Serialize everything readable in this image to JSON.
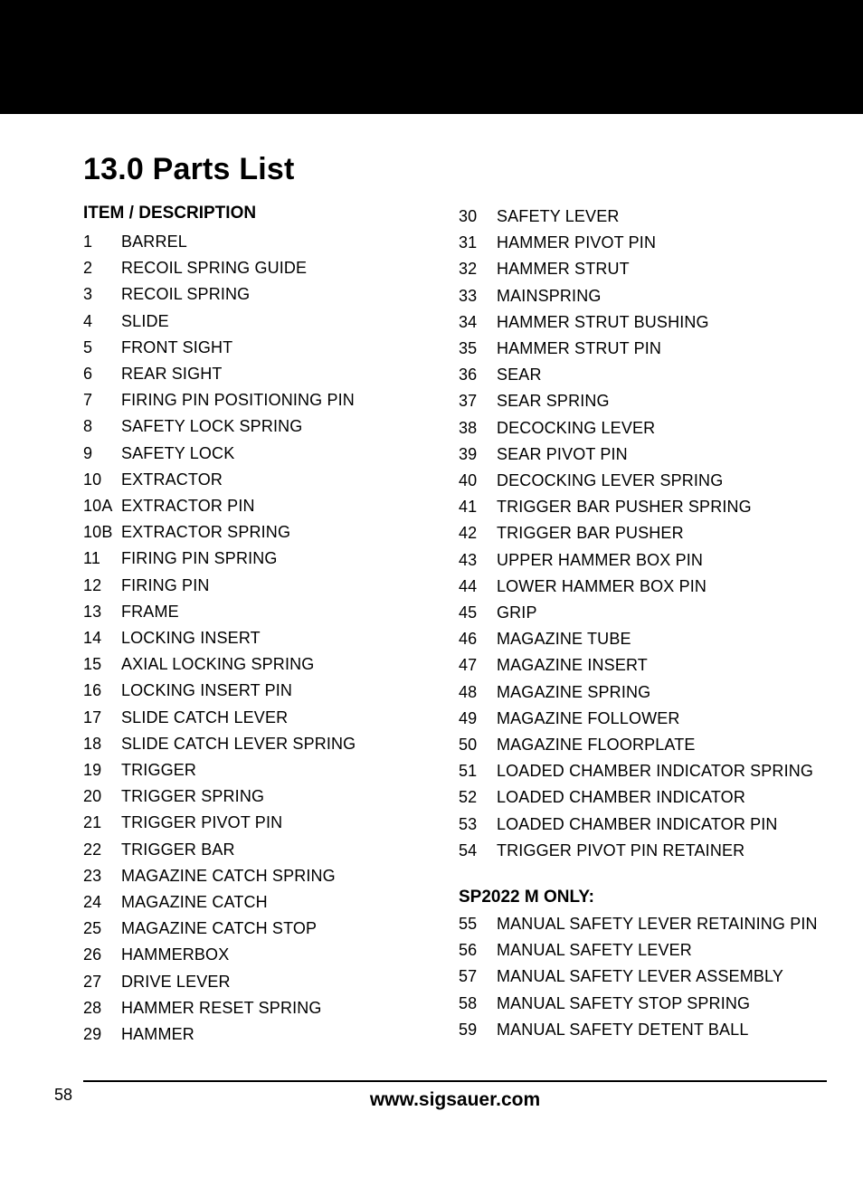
{
  "colors": {
    "banner_bg": "#000000",
    "page_bg": "#ffffff",
    "text": "#000000",
    "rule": "#000000"
  },
  "typography": {
    "title_fontsize_pt": 26,
    "body_fontsize_pt": 13,
    "footer_url_fontsize_pt": 16,
    "font_family": "Arial"
  },
  "title": "13.0 Parts List",
  "column_header": "ITEM / DESCRIPTION",
  "subgroup_header": "SP2022 M ONLY:",
  "left_items": [
    {
      "num": "1",
      "desc": "BARREL"
    },
    {
      "num": "2",
      "desc": "RECOIL SPRING GUIDE"
    },
    {
      "num": "3",
      "desc": "RECOIL SPRING"
    },
    {
      "num": "4",
      "desc": "SLIDE"
    },
    {
      "num": "5",
      "desc": "FRONT SIGHT"
    },
    {
      "num": "6",
      "desc": "REAR SIGHT"
    },
    {
      "num": "7",
      "desc": "FIRING PIN POSITIONING PIN"
    },
    {
      "num": "8",
      "desc": "SAFETY LOCK SPRING"
    },
    {
      "num": "9",
      "desc": "SAFETY LOCK"
    },
    {
      "num": "10",
      "desc": "EXTRACTOR"
    },
    {
      "num": "10A",
      "desc": "EXTRACTOR PIN"
    },
    {
      "num": "10B",
      "desc": "EXTRACTOR SPRING"
    },
    {
      "num": "11",
      "desc": "FIRING PIN SPRING"
    },
    {
      "num": "12",
      "desc": "FIRING PIN"
    },
    {
      "num": "13",
      "desc": "FRAME"
    },
    {
      "num": "14",
      "desc": "LOCKING INSERT"
    },
    {
      "num": "15",
      "desc": "AXIAL LOCKING SPRING"
    },
    {
      "num": "16",
      "desc": "LOCKING INSERT PIN"
    },
    {
      "num": "17",
      "desc": "SLIDE CATCH LEVER"
    },
    {
      "num": "18",
      "desc": "SLIDE CATCH LEVER SPRING"
    },
    {
      "num": "19",
      "desc": "TRIGGER"
    },
    {
      "num": "20",
      "desc": "TRIGGER SPRING"
    },
    {
      "num": "21",
      "desc": "TRIGGER PIVOT PIN"
    },
    {
      "num": "22",
      "desc": "TRIGGER BAR"
    },
    {
      "num": "23",
      "desc": "MAGAZINE CATCH SPRING"
    },
    {
      "num": "24",
      "desc": "MAGAZINE CATCH"
    },
    {
      "num": "25",
      "desc": "MAGAZINE CATCH STOP"
    },
    {
      "num": "26",
      "desc": "HAMMERBOX"
    },
    {
      "num": "27",
      "desc": "DRIVE LEVER"
    },
    {
      "num": "28",
      "desc": "HAMMER RESET SPRING"
    },
    {
      "num": "29",
      "desc": "HAMMER"
    }
  ],
  "right_items": [
    {
      "num": "30",
      "desc": "SAFETY LEVER"
    },
    {
      "num": "31",
      "desc": "HAMMER PIVOT PIN"
    },
    {
      "num": "32",
      "desc": "HAMMER STRUT"
    },
    {
      "num": "33",
      "desc": "MAINSPRING"
    },
    {
      "num": "34",
      "desc": "HAMMER STRUT BUSHING"
    },
    {
      "num": "35",
      "desc": "HAMMER STRUT PIN"
    },
    {
      "num": "36",
      "desc": "SEAR"
    },
    {
      "num": "37",
      "desc": "SEAR SPRING"
    },
    {
      "num": "38",
      "desc": "DECOCKING LEVER"
    },
    {
      "num": "39",
      "desc": "SEAR PIVOT PIN"
    },
    {
      "num": "40",
      "desc": "DECOCKING LEVER SPRING"
    },
    {
      "num": "41",
      "desc": "TRIGGER BAR PUSHER SPRING"
    },
    {
      "num": "42",
      "desc": "TRIGGER BAR PUSHER"
    },
    {
      "num": "43",
      "desc": "UPPER HAMMER BOX PIN"
    },
    {
      "num": "44",
      "desc": "LOWER HAMMER BOX PIN"
    },
    {
      "num": "45",
      "desc": "GRIP"
    },
    {
      "num": "46",
      "desc": "MAGAZINE TUBE"
    },
    {
      "num": "47",
      "desc": "MAGAZINE INSERT"
    },
    {
      "num": "48",
      "desc": "MAGAZINE SPRING"
    },
    {
      "num": "49",
      "desc": "MAGAZINE FOLLOWER"
    },
    {
      "num": "50",
      "desc": "MAGAZINE FLOORPLATE"
    },
    {
      "num": "51",
      "desc": "LOADED CHAMBER INDICATOR SPRING"
    },
    {
      "num": "52",
      "desc": "LOADED CHAMBER INDICATOR"
    },
    {
      "num": "53",
      "desc": "LOADED CHAMBER INDICATOR PIN"
    },
    {
      "num": "54",
      "desc": "TRIGGER PIVOT PIN RETAINER"
    }
  ],
  "subgroup_items": [
    {
      "num": "55",
      "desc": "MANUAL SAFETY LEVER RETAINING PIN"
    },
    {
      "num": "56",
      "desc": "MANUAL SAFETY LEVER"
    },
    {
      "num": "57",
      "desc": "MANUAL SAFETY LEVER ASSEMBLY"
    },
    {
      "num": "58",
      "desc": "MANUAL SAFETY STOP SPRING"
    },
    {
      "num": "59",
      "desc": "MANUAL SAFETY DETENT BALL"
    }
  ],
  "footer": {
    "page_number": "58",
    "url": "www.sigsauer.com"
  }
}
